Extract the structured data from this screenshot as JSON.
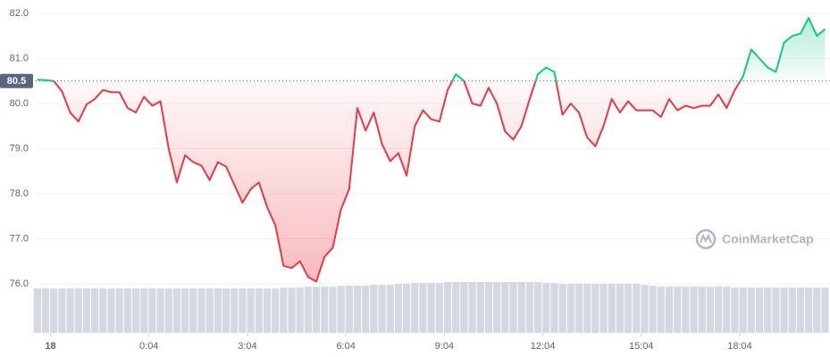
{
  "chart_data": {
    "type": "line",
    "x": [
      -0.4,
      -0.15,
      0.1,
      0.35,
      0.6,
      0.85,
      1.1,
      1.35,
      1.6,
      1.85,
      2.1,
      2.35,
      2.6,
      2.85,
      3.1,
      3.35,
      3.6,
      3.85,
      4.1,
      4.35,
      4.6,
      4.85,
      5.1,
      5.35,
      5.6,
      5.85,
      6.1,
      6.35,
      6.6,
      6.85,
      7.1,
      7.35,
      7.6,
      7.85,
      8.1,
      8.35,
      8.6,
      8.85,
      9.1,
      9.35,
      9.6,
      9.85,
      10.1,
      10.35,
      10.6,
      10.85,
      11.1,
      11.35,
      11.6,
      11.85,
      12.1,
      12.35,
      12.6,
      12.85,
      13.1,
      13.35,
      13.6,
      13.85,
      14.1,
      14.35,
      14.6,
      14.85,
      15.1,
      15.35,
      15.6,
      15.85,
      16.1,
      16.35,
      16.6,
      16.85,
      17.1,
      17.35,
      17.6,
      17.85,
      18.1,
      18.35,
      18.6,
      18.85,
      19.1,
      19.35,
      19.6,
      19.85,
      20.1,
      20.35,
      20.6,
      20.85,
      21.1,
      21.35,
      21.6,
      21.85,
      22.1,
      22.35,
      22.6,
      22.85,
      23.1,
      23.35,
      23.6
    ],
    "values": [
      80.53,
      80.52,
      80.5,
      80.27,
      79.8,
      79.6,
      79.98,
      80.1,
      80.3,
      80.25,
      80.25,
      79.9,
      79.8,
      80.15,
      79.95,
      80.05,
      79.0,
      78.25,
      78.85,
      78.7,
      78.62,
      78.3,
      78.7,
      78.6,
      78.2,
      77.8,
      78.1,
      78.25,
      77.7,
      77.3,
      76.4,
      76.35,
      76.5,
      76.15,
      76.05,
      76.6,
      76.8,
      77.65,
      78.1,
      79.9,
      79.4,
      79.8,
      79.1,
      78.72,
      78.9,
      78.4,
      79.5,
      79.85,
      79.65,
      79.6,
      80.3,
      80.65,
      80.5,
      80.0,
      79.95,
      80.35,
      80.0,
      79.38,
      79.2,
      79.5,
      80.1,
      80.65,
      80.8,
      80.7,
      79.75,
      80.0,
      79.8,
      79.25,
      79.05,
      79.5,
      80.1,
      79.8,
      80.05,
      79.85,
      79.85,
      79.85,
      79.7,
      80.1,
      79.85,
      79.95,
      79.9,
      79.95,
      79.95,
      80.2,
      79.9,
      80.3,
      80.6,
      81.2,
      81.0,
      80.8,
      80.7,
      81.35,
      81.5,
      81.55,
      81.9,
      81.5,
      81.65
    ],
    "volume": [
      48,
      48,
      48,
      48,
      48,
      48,
      48,
      48,
      48,
      48,
      48,
      48,
      48,
      48,
      48,
      48,
      48,
      48,
      48,
      48,
      48,
      48,
      48,
      48,
      48,
      48,
      48,
      48,
      48,
      48,
      49,
      49,
      49,
      50,
      50,
      50,
      50,
      51,
      51,
      51,
      51,
      52,
      52,
      52,
      53,
      53,
      54,
      54,
      54,
      54,
      55,
      55,
      55,
      55,
      55,
      55,
      55,
      55,
      55,
      55,
      55,
      55,
      54,
      54,
      53,
      53,
      53,
      53,
      53,
      53,
      53,
      53,
      53,
      53,
      52,
      51,
      50,
      50,
      50,
      50,
      50,
      50,
      50,
      50,
      50,
      49,
      49,
      49,
      49,
      49,
      49,
      49,
      49,
      49,
      49,
      49,
      49
    ],
    "baseline": 80.5,
    "up_color": "#16c784",
    "down_color": "#ea3943",
    "volume_color": "#d3d8e1",
    "xlim": [
      -0.45,
      23.75
    ],
    "ylim": [
      75,
      82
    ],
    "xticks": [
      {
        "value": 0,
        "label": "18"
      },
      {
        "value": 3,
        "label": "0:04"
      },
      {
        "value": 6,
        "label": "3:04"
      },
      {
        "value": 9,
        "label": "6:04"
      },
      {
        "value": 12,
        "label": "9:04"
      },
      {
        "value": 15,
        "label": "12:04"
      },
      {
        "value": 18,
        "label": "15:04"
      },
      {
        "value": 21,
        "label": "18:04"
      }
    ],
    "yticks": [
      {
        "value": 76,
        "label": "76.0"
      },
      {
        "value": 77,
        "label": "77.0"
      },
      {
        "value": 78,
        "label": "78.0"
      },
      {
        "value": 79,
        "label": "79.0"
      },
      {
        "value": 80,
        "label": "80.0"
      },
      {
        "value": 81,
        "label": "81.0"
      },
      {
        "value": 82,
        "label": "82.0"
      }
    ],
    "grid": true,
    "watermark": "CoinMarketCap"
  }
}
